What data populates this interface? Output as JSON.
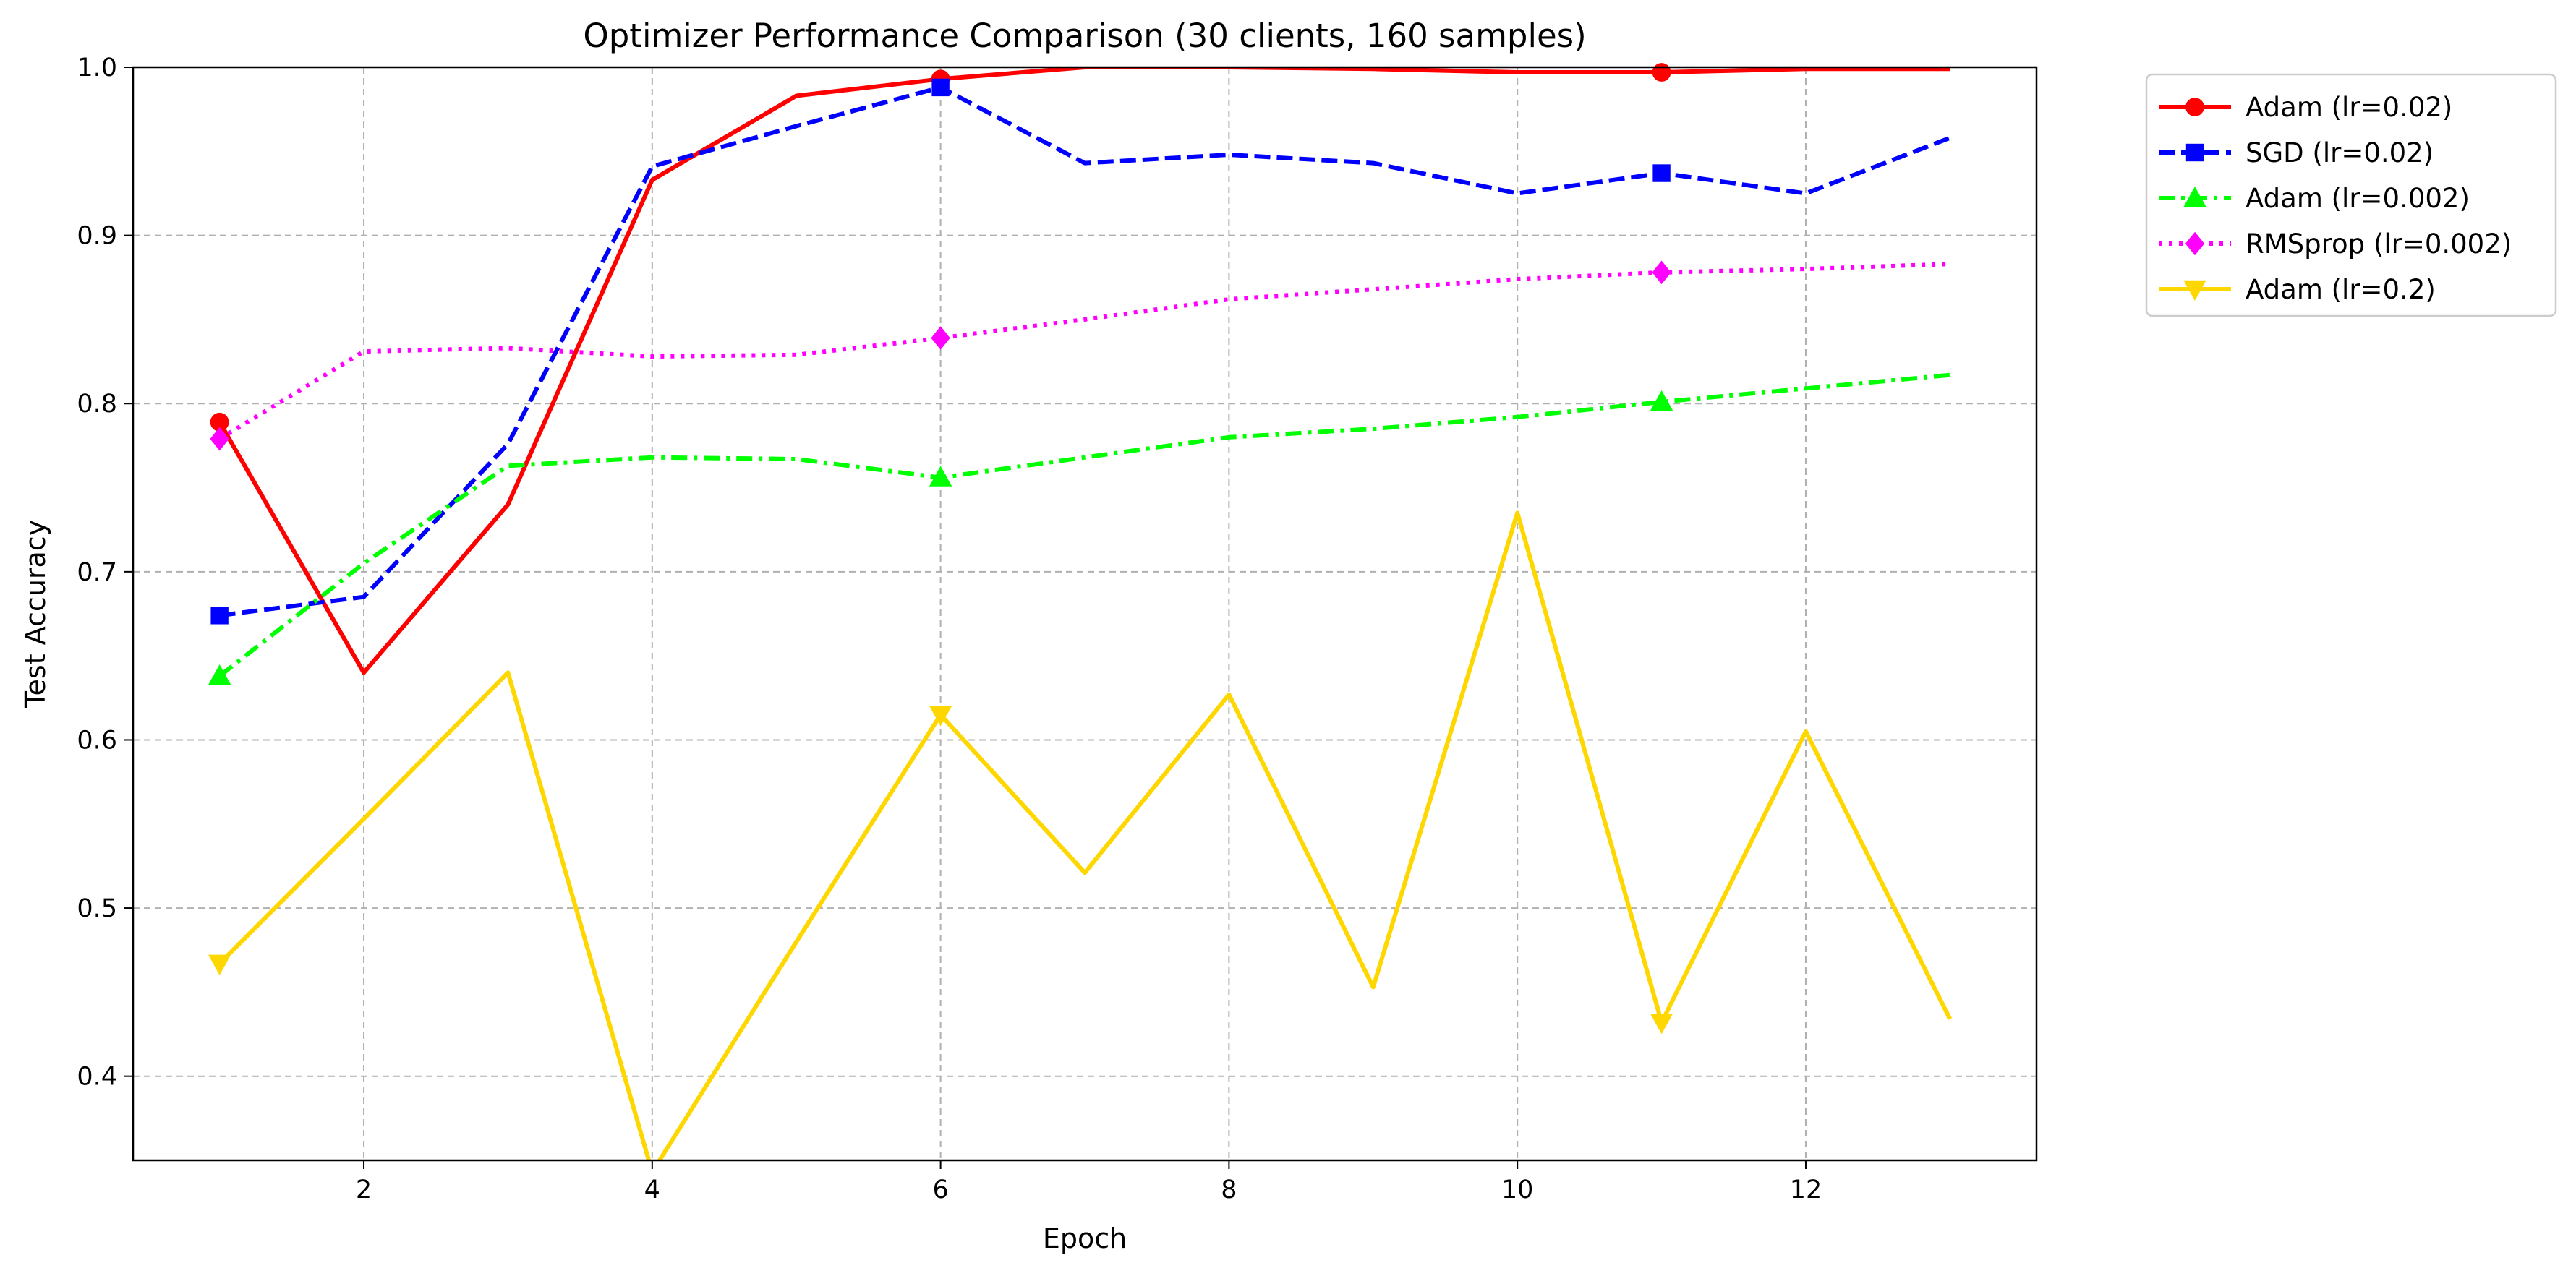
{
  "chart_data": {
    "type": "line",
    "title": "Optimizer Performance Comparison (30 clients, 160 samples)",
    "xlabel": "Epoch",
    "ylabel": "Test Accuracy",
    "xlim": [
      0.4,
      13.6
    ],
    "ylim": [
      0.35,
      1.0
    ],
    "xticks": [
      2,
      4,
      6,
      8,
      10,
      12
    ],
    "yticks": [
      0.4,
      0.5,
      0.6,
      0.7,
      0.8,
      0.9,
      1.0
    ],
    "xtick_labels": [
      "2",
      "4",
      "6",
      "8",
      "10",
      "12"
    ],
    "ytick_labels": [
      "0.4",
      "0.5",
      "0.6",
      "0.7",
      "0.8",
      "0.9",
      "1.0"
    ],
    "grid": true,
    "legend_position": "outside-top-right",
    "x": [
      1,
      2,
      3,
      4,
      5,
      6,
      7,
      8,
      9,
      10,
      11,
      12,
      13
    ],
    "series": [
      {
        "name": "Adam (lr=0.02)",
        "color": "#ff0000",
        "line_style": "solid",
        "marker": "circle",
        "values": [
          0.789,
          0.64,
          0.74,
          0.933,
          0.983,
          0.993,
          1.0,
          1.0,
          0.999,
          0.997,
          0.997,
          0.999,
          0.999
        ]
      },
      {
        "name": "SGD (lr=0.02)",
        "color": "#0000ff",
        "line_style": "dashed",
        "marker": "square",
        "values": [
          0.674,
          0.685,
          0.776,
          0.941,
          0.965,
          0.988,
          0.943,
          0.948,
          0.943,
          0.925,
          0.937,
          0.925,
          0.958
        ]
      },
      {
        "name": "Adam (lr=0.002)",
        "color": "#00ff00",
        "line_style": "dashdot",
        "marker": "triangle-up",
        "values": [
          0.638,
          0.705,
          0.763,
          0.768,
          0.767,
          0.756,
          0.768,
          0.78,
          0.785,
          0.792,
          0.801,
          0.809,
          0.817
        ]
      },
      {
        "name": "RMSprop (lr=0.002)",
        "color": "#ff00ff",
        "line_style": "dotted",
        "marker": "diamond",
        "values": [
          0.779,
          0.831,
          0.833,
          0.828,
          0.829,
          0.839,
          0.85,
          0.862,
          0.868,
          0.874,
          0.878,
          0.88,
          0.883
        ]
      },
      {
        "name": "Adam (lr=0.2)",
        "color": "#ffd700",
        "line_style": "solid",
        "marker": "triangle-down",
        "values": [
          0.467,
          0.553,
          0.64,
          0.343,
          0.48,
          0.615,
          0.521,
          0.627,
          0.453,
          0.735,
          0.432,
          0.605,
          0.434
        ]
      }
    ],
    "marker_every": [
      0,
      5,
      10
    ]
  }
}
